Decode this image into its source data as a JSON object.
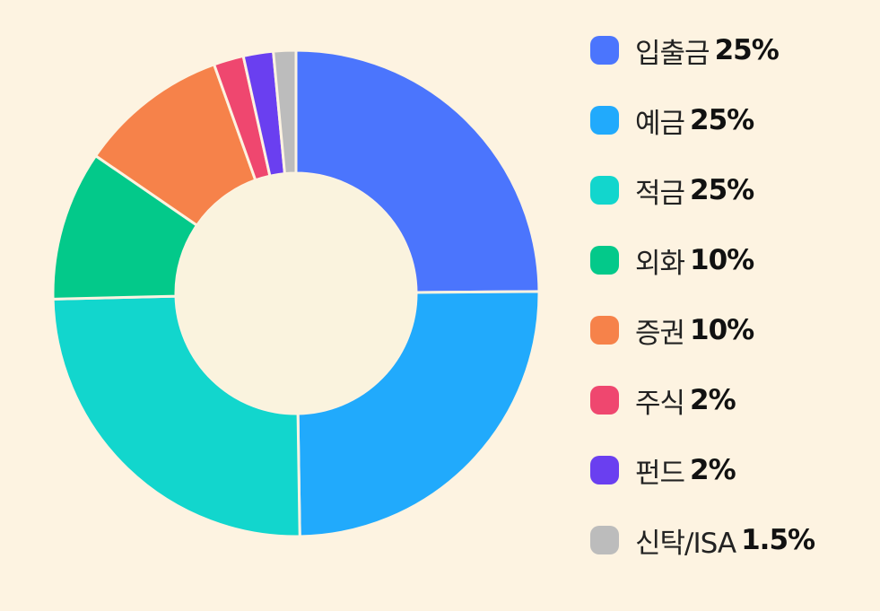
{
  "chart_data": {
    "type": "pie",
    "title": "",
    "legend_position": "right",
    "center_color": "#faf3de",
    "slices": [
      {
        "label": "입출금",
        "value": 25,
        "value_label": "25%",
        "color": "#4b75fd"
      },
      {
        "label": "예금",
        "value": 25,
        "value_label": "25%",
        "color": "#21aafc"
      },
      {
        "label": "적금",
        "value": 25,
        "value_label": "25%",
        "color": "#12d6cd"
      },
      {
        "label": "외화",
        "value": 10,
        "value_label": "10%",
        "color": "#03c98a"
      },
      {
        "label": "증권",
        "value": 10,
        "value_label": "10%",
        "color": "#f6824a"
      },
      {
        "label": "주식",
        "value": 2,
        "value_label": "2%",
        "color": "#ef476f"
      },
      {
        "label": "펀드",
        "value": 2,
        "value_label": "2%",
        "color": "#6a3ff0"
      },
      {
        "label": "신탁/ISA",
        "value": 1.5,
        "value_label": "1.5%",
        "color": "#bcbcbc"
      }
    ]
  }
}
